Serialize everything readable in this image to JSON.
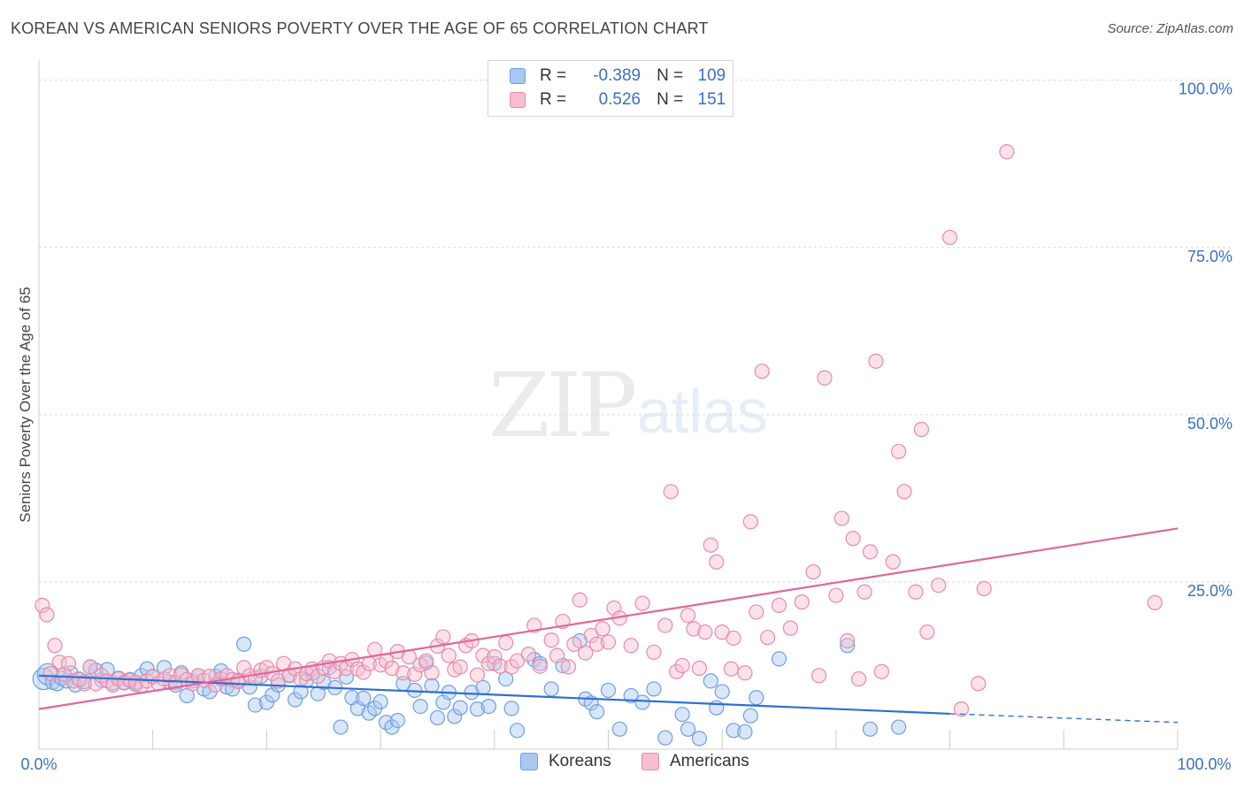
{
  "header": {
    "title": "KOREAN VS AMERICAN SENIORS POVERTY OVER THE AGE OF 65 CORRELATION CHART",
    "source": "Source: ZipAtlas.com"
  },
  "watermark": {
    "zip": "ZIP",
    "atlas": "atlas"
  },
  "legend": {
    "rows": [
      {
        "r_label": "R =",
        "r_value": "-0.389",
        "n_label": "N =",
        "n_value": "109",
        "color": "#a9c8f2",
        "border": "#6f9ee0"
      },
      {
        "r_label": "R =",
        "r_value": "0.526",
        "n_label": "N =",
        "n_value": "151",
        "color": "#f7bed0",
        "border": "#e98aa8"
      }
    ]
  },
  "bottom_legend": {
    "koreans": "Koreans",
    "americans": "Americans"
  },
  "chart_data": {
    "type": "scatter",
    "xlabel": "",
    "ylabel": "Seniors Poverty Over the Age of 65",
    "xlim": [
      0,
      100
    ],
    "ylim": [
      0,
      103
    ],
    "x_tick_labels": [
      "0.0%",
      "100.0%"
    ],
    "y_tick_labels": [
      "25.0%",
      "50.0%",
      "75.0%",
      "100.0%"
    ],
    "y_ticks": [
      25,
      50,
      75,
      100
    ],
    "grid": true,
    "colors": {
      "koreans": "#6f9ee0",
      "koreans_line": "#2f6fd0",
      "americans": "#e98aa8",
      "americans_line": "#e0679a"
    },
    "series": [
      {
        "name": "Koreans",
        "trend": {
          "x0": 0,
          "y0": 11.0,
          "x1": 80,
          "y1": 5.3,
          "dash_to": 100,
          "dash_y": 4.0
        },
        "points": [
          [
            0.4,
            10.5
          ],
          [
            0.8,
            11.2
          ],
          [
            1.2,
            10.0
          ],
          [
            1.6,
            9.8
          ],
          [
            2.0,
            10.6
          ],
          [
            2.4,
            10.2
          ],
          [
            2.8,
            11.4
          ],
          [
            3.2,
            9.6
          ],
          [
            3.6,
            10.4
          ],
          [
            4.0,
            10.1
          ],
          [
            4.5,
            12.3
          ],
          [
            5.0,
            11.8
          ],
          [
            5.5,
            10.3
          ],
          [
            6.0,
            11.9
          ],
          [
            6.5,
            9.9
          ],
          [
            7.0,
            10.6
          ],
          [
            7.5,
            10.0
          ],
          [
            8.0,
            10.4
          ],
          [
            8.5,
            9.7
          ],
          [
            9.0,
            11.0
          ],
          [
            9.5,
            12.0
          ],
          [
            10.0,
            10.8
          ],
          [
            11.0,
            12.2
          ],
          [
            11.5,
            10.0
          ],
          [
            12.0,
            9.6
          ],
          [
            12.5,
            11.4
          ],
          [
            13.0,
            8.0
          ],
          [
            13.5,
            10.2
          ],
          [
            14.0,
            11.0
          ],
          [
            14.5,
            9.0
          ],
          [
            15.0,
            8.6
          ],
          [
            15.5,
            10.9
          ],
          [
            16.0,
            11.7
          ],
          [
            16.5,
            9.3
          ],
          [
            17.0,
            9.0
          ],
          [
            17.5,
            10.3
          ],
          [
            18.0,
            15.7
          ],
          [
            18.5,
            9.3
          ],
          [
            19.0,
            6.6
          ],
          [
            19.5,
            10.9
          ],
          [
            20.0,
            7.0
          ],
          [
            20.5,
            8.1
          ],
          [
            21.0,
            9.6
          ],
          [
            22.0,
            11.0
          ],
          [
            22.5,
            7.4
          ],
          [
            23.0,
            8.6
          ],
          [
            23.5,
            10.3
          ],
          [
            24.0,
            11.4
          ],
          [
            24.5,
            8.3
          ],
          [
            25.0,
            10.0
          ],
          [
            25.5,
            12.2
          ],
          [
            26.0,
            9.2
          ],
          [
            26.5,
            3.3
          ],
          [
            27.0,
            10.8
          ],
          [
            27.5,
            7.7
          ],
          [
            28.0,
            6.1
          ],
          [
            28.5,
            7.6
          ],
          [
            29.0,
            5.4
          ],
          [
            29.5,
            6.1
          ],
          [
            30.0,
            7.1
          ],
          [
            30.5,
            4.0
          ],
          [
            31.0,
            3.3
          ],
          [
            31.5,
            4.3
          ],
          [
            32.0,
            9.8
          ],
          [
            33.0,
            8.8
          ],
          [
            33.5,
            6.4
          ],
          [
            34.0,
            12.9
          ],
          [
            34.5,
            9.5
          ],
          [
            35.0,
            4.7
          ],
          [
            35.5,
            7.0
          ],
          [
            36.0,
            8.5
          ],
          [
            36.5,
            4.9
          ],
          [
            37.0,
            6.2
          ],
          [
            38.0,
            8.5
          ],
          [
            38.5,
            6.0
          ],
          [
            39.0,
            9.2
          ],
          [
            39.5,
            6.4
          ],
          [
            40.0,
            12.8
          ],
          [
            41.0,
            10.5
          ],
          [
            41.5,
            6.1
          ],
          [
            42.0,
            2.8
          ],
          [
            43.5,
            13.4
          ],
          [
            44.0,
            12.8
          ],
          [
            45.0,
            9.0
          ],
          [
            46.0,
            12.5
          ],
          [
            47.5,
            16.2
          ],
          [
            48.0,
            7.5
          ],
          [
            48.5,
            6.9
          ],
          [
            49.0,
            5.6
          ],
          [
            50.0,
            8.8
          ],
          [
            51.0,
            3.0
          ],
          [
            52.0,
            8.0
          ],
          [
            53.0,
            7.0
          ],
          [
            54.0,
            9.0
          ],
          [
            55.0,
            1.7
          ],
          [
            56.5,
            5.2
          ],
          [
            57.0,
            3.0
          ],
          [
            58.0,
            1.6
          ],
          [
            59.0,
            10.2
          ],
          [
            59.5,
            6.2
          ],
          [
            60.0,
            8.6
          ],
          [
            61.0,
            2.8
          ],
          [
            62.0,
            2.6
          ],
          [
            63.0,
            7.7
          ],
          [
            65.0,
            13.5
          ],
          [
            71.0,
            15.5
          ],
          [
            73.0,
            3.0
          ],
          [
            75.5,
            3.3
          ],
          [
            62.5,
            5.0
          ]
        ]
      },
      {
        "name": "Americans",
        "trend": {
          "x0": 0,
          "y0": 6.0,
          "x1": 100,
          "y1": 33.0
        },
        "points": [
          [
            0.3,
            21.5
          ],
          [
            0.7,
            20.1
          ],
          [
            1.0,
            11.3
          ],
          [
            1.4,
            15.5
          ],
          [
            1.8,
            13.0
          ],
          [
            2.2,
            11.2
          ],
          [
            2.6,
            12.8
          ],
          [
            3.0,
            10.2
          ],
          [
            3.5,
            10.5
          ],
          [
            4.0,
            9.8
          ],
          [
            4.5,
            12.3
          ],
          [
            5.0,
            9.8
          ],
          [
            5.5,
            11.0
          ],
          [
            6.0,
            10.2
          ],
          [
            6.5,
            9.6
          ],
          [
            7.0,
            10.5
          ],
          [
            7.5,
            9.9
          ],
          [
            8.0,
            10.3
          ],
          [
            8.5,
            10.0
          ],
          [
            9.0,
            9.5
          ],
          [
            9.5,
            10.2
          ],
          [
            10.0,
            10.9
          ],
          [
            10.5,
            9.8
          ],
          [
            11.0,
            10.5
          ],
          [
            11.5,
            11.0
          ],
          [
            12.0,
            10.0
          ],
          [
            12.5,
            11.1
          ],
          [
            13.0,
            10.4
          ],
          [
            13.5,
            9.8
          ],
          [
            14.0,
            11.0
          ],
          [
            14.5,
            10.3
          ],
          [
            15.0,
            10.9
          ],
          [
            15.5,
            9.6
          ],
          [
            16.0,
            10.5
          ],
          [
            16.5,
            11.0
          ],
          [
            17.0,
            10.4
          ],
          [
            17.5,
            10.1
          ],
          [
            18.0,
            12.2
          ],
          [
            18.5,
            11.0
          ],
          [
            19.0,
            10.6
          ],
          [
            19.5,
            11.8
          ],
          [
            20.0,
            12.2
          ],
          [
            20.5,
            11.3
          ],
          [
            21.0,
            10.2
          ],
          [
            21.5,
            12.8
          ],
          [
            22.0,
            11.1
          ],
          [
            22.5,
            12.0
          ],
          [
            23.0,
            10.5
          ],
          [
            23.5,
            11.3
          ],
          [
            24.0,
            12.0
          ],
          [
            24.5,
            10.9
          ],
          [
            25.0,
            12.2
          ],
          [
            25.5,
            13.2
          ],
          [
            26.0,
            11.6
          ],
          [
            26.5,
            12.8
          ],
          [
            27.0,
            12.1
          ],
          [
            27.5,
            13.4
          ],
          [
            28.0,
            12.0
          ],
          [
            28.5,
            11.5
          ],
          [
            29.0,
            12.8
          ],
          [
            29.5,
            14.9
          ],
          [
            30.0,
            12.6
          ],
          [
            30.5,
            13.2
          ],
          [
            31.0,
            12.1
          ],
          [
            31.5,
            14.6
          ],
          [
            32.0,
            11.4
          ],
          [
            32.5,
            13.8
          ],
          [
            33.0,
            11.2
          ],
          [
            33.5,
            12.6
          ],
          [
            34.0,
            13.2
          ],
          [
            34.5,
            11.4
          ],
          [
            35.0,
            15.4
          ],
          [
            35.5,
            16.8
          ],
          [
            36.0,
            14.0
          ],
          [
            36.5,
            11.9
          ],
          [
            37.0,
            12.3
          ],
          [
            37.5,
            15.5
          ],
          [
            38.0,
            16.2
          ],
          [
            38.5,
            11.1
          ],
          [
            39.0,
            14.0
          ],
          [
            39.5,
            12.8
          ],
          [
            40.0,
            13.8
          ],
          [
            40.5,
            12.4
          ],
          [
            41.0,
            15.9
          ],
          [
            41.5,
            12.3
          ],
          [
            42.0,
            13.2
          ],
          [
            43.0,
            14.2
          ],
          [
            43.5,
            18.5
          ],
          [
            44.0,
            12.4
          ],
          [
            45.0,
            16.3
          ],
          [
            45.5,
            14.0
          ],
          [
            46.0,
            19.1
          ],
          [
            46.5,
            12.3
          ],
          [
            47.0,
            15.7
          ],
          [
            47.5,
            22.3
          ],
          [
            48.0,
            14.4
          ],
          [
            48.5,
            17.0
          ],
          [
            49.0,
            15.7
          ],
          [
            49.5,
            18.0
          ],
          [
            50.0,
            16.0
          ],
          [
            50.5,
            21.1
          ],
          [
            51.0,
            19.6
          ],
          [
            52.0,
            15.5
          ],
          [
            53.0,
            21.8
          ],
          [
            54.0,
            14.5
          ],
          [
            55.0,
            18.5
          ],
          [
            55.5,
            38.5
          ],
          [
            56.0,
            11.6
          ],
          [
            56.5,
            12.5
          ],
          [
            57.0,
            20.0
          ],
          [
            57.5,
            18.0
          ],
          [
            58.0,
            12.1
          ],
          [
            58.5,
            17.5
          ],
          [
            59.0,
            30.5
          ],
          [
            59.5,
            28.0
          ],
          [
            60.0,
            17.5
          ],
          [
            61.0,
            16.6
          ],
          [
            62.0,
            11.4
          ],
          [
            62.5,
            34.0
          ],
          [
            63.0,
            20.5
          ],
          [
            63.5,
            56.5
          ],
          [
            64.0,
            16.7
          ],
          [
            65.0,
            21.5
          ],
          [
            66.0,
            18.1
          ],
          [
            67.0,
            22.0
          ],
          [
            68.0,
            26.5
          ],
          [
            68.5,
            11.0
          ],
          [
            69.0,
            55.5
          ],
          [
            70.0,
            23.0
          ],
          [
            70.5,
            34.5
          ],
          [
            71.0,
            16.2
          ],
          [
            71.5,
            31.5
          ],
          [
            72.0,
            10.5
          ],
          [
            72.5,
            23.5
          ],
          [
            73.0,
            29.5
          ],
          [
            73.5,
            58.0
          ],
          [
            74.0,
            11.6
          ],
          [
            75.0,
            28.0
          ],
          [
            75.5,
            44.5
          ],
          [
            76.0,
            38.5
          ],
          [
            77.0,
            23.5
          ],
          [
            78.0,
            17.5
          ],
          [
            79.0,
            24.5
          ],
          [
            80.0,
            76.5
          ],
          [
            81.0,
            6.0
          ],
          [
            82.5,
            9.8
          ],
          [
            83.0,
            24.0
          ],
          [
            85.0,
            89.3
          ],
          [
            98.0,
            21.9
          ],
          [
            77.5,
            47.8
          ],
          [
            60.8,
            12.0
          ]
        ]
      }
    ]
  }
}
